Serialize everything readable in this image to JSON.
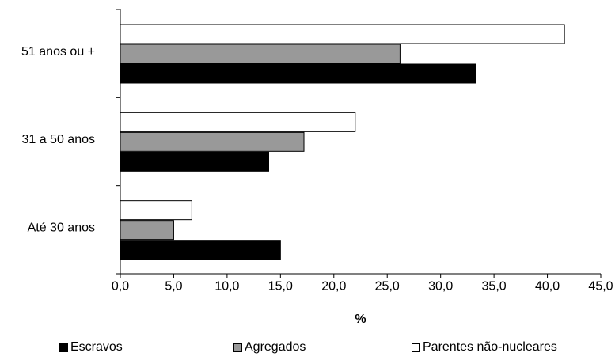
{
  "chart_data": {
    "type": "bar",
    "orientation": "horizontal",
    "categories": [
      "51 anos ou +",
      "31 a 50 anos",
      "Até 30 anos"
    ],
    "series": [
      {
        "name": "Parentes não-nucleares",
        "color": "#ffffff",
        "values": [
          41.6,
          22.0,
          6.7
        ]
      },
      {
        "name": "Agregados",
        "color": "#999999",
        "values": [
          26.2,
          17.2,
          5.0
        ]
      },
      {
        "name": "Escravos",
        "color": "#000000",
        "values": [
          33.3,
          13.9,
          15.0
        ]
      }
    ],
    "legend_order": [
      "Escravos",
      "Agregados",
      "Parentes não-nucleares"
    ],
    "xlabel": "%",
    "xlim": [
      0,
      45
    ],
    "xticks": [
      "0,0",
      "5,0",
      "10,0",
      "15,0",
      "20,0",
      "25,0",
      "30,0",
      "35,0",
      "40,0",
      "45,0"
    ],
    "grid": false,
    "legend_position": "bottom"
  }
}
